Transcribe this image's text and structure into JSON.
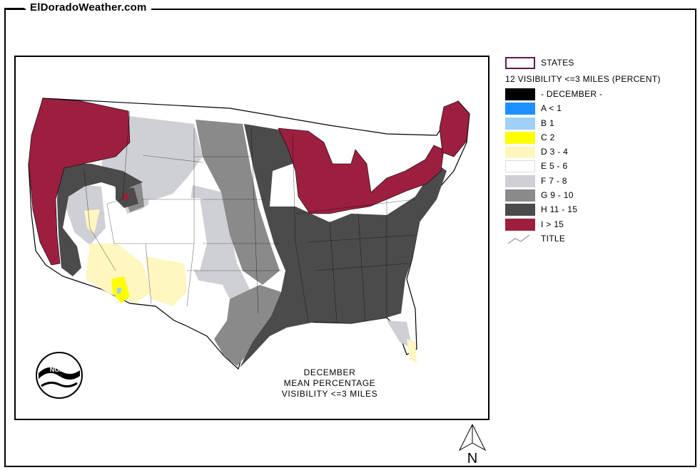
{
  "header": {
    "site_title": "ElDoradoWeather.com"
  },
  "map": {
    "caption": [
      "DECEMBER",
      "MEAN PERCENTAGE",
      "VISIBILITY <=3 MILES"
    ],
    "logo_text": "NOAA",
    "compass_label": "N"
  },
  "legend": {
    "states_label": "STATES",
    "layer_title": "12 VISIBILITY <=3 MILES (PERCENT)",
    "items": [
      {
        "label": "- DECEMBER -",
        "color": "#000000"
      },
      {
        "label": "A < 1",
        "color": "#1e90ff"
      },
      {
        "label": "B 1",
        "color": "#a0cff8"
      },
      {
        "label": "C 2",
        "color": "#ffff00"
      },
      {
        "label": "D 3 - 4",
        "color": "#fff6c0"
      },
      {
        "label": "E 5 - 6",
        "color": "#ffffff"
      },
      {
        "label": "F 7 - 8",
        "color": "#cfcfd6"
      },
      {
        "label": "G 9 - 10",
        "color": "#8a8a8a"
      },
      {
        "label": "H 11 - 15",
        "color": "#4b4b4b"
      },
      {
        "label": "I > 15",
        "color": "#9c1f3f"
      }
    ],
    "title_label": "TITLE"
  }
}
